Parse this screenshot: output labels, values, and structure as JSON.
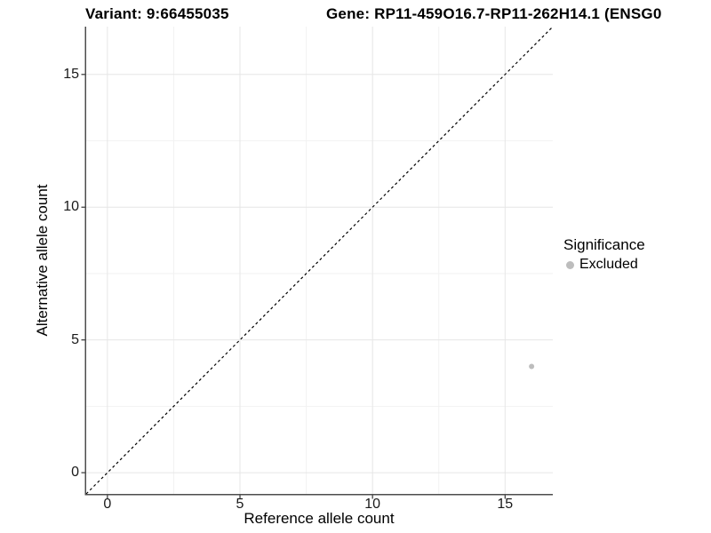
{
  "chart_data": {
    "type": "scatter",
    "title_left": "Variant: 9:66455035",
    "title_right": "Gene: RP11-459O16.7-RP11-262H14.1 (ENSG0",
    "xlabel": "Reference allele count",
    "ylabel": "Alternative allele count",
    "xlim": [
      -0.8,
      16.8
    ],
    "ylim": [
      -0.8,
      16.8
    ],
    "x_major_ticks": [
      0,
      5,
      10,
      15
    ],
    "x_minor_ticks": [
      2.5,
      7.5,
      12.5
    ],
    "y_major_ticks": [
      0,
      5,
      10,
      15
    ],
    "y_minor_ticks": [
      2.5,
      7.5,
      12.5
    ],
    "tick_labels": {
      "x": [
        "0",
        "5",
        "10",
        "15"
      ],
      "y": [
        "0",
        "5",
        "10",
        "15"
      ]
    },
    "grid": "major and minor, light grey on white background",
    "legend_position": "right",
    "series": [
      {
        "name": "Excluded",
        "color": "#bdbdbd",
        "points": [
          {
            "x": 16,
            "y": 4
          }
        ]
      }
    ],
    "reference_line": {
      "type": "identity y=x",
      "dashed": true,
      "color": "#000000"
    },
    "legend": {
      "title": "Significance",
      "items": [
        {
          "label": "Excluded",
          "color": "#bdbdbd"
        }
      ]
    },
    "colors": {
      "axis_line": "#4d4d4d",
      "tick_mark": "#333333",
      "major_gridline": "#e6e6e6",
      "minor_gridline": "#f2f2f2",
      "tick_label": "#1a1a1a"
    }
  }
}
